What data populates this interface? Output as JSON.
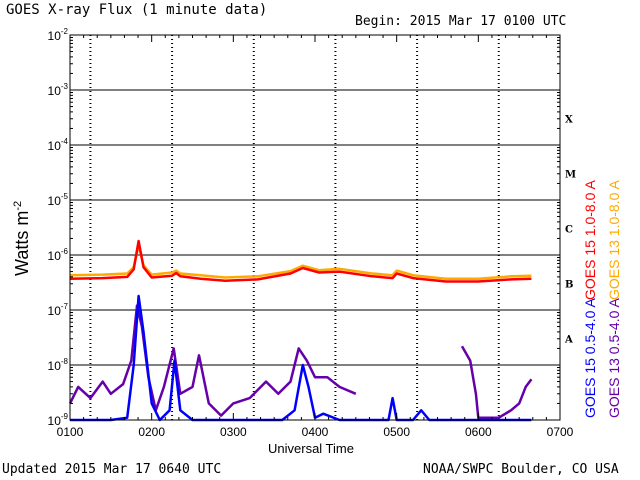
{
  "header": {
    "title": "GOES X-ray Flux (1 minute data)",
    "begin": "Begin: 2015 Mar 17 0100 UTC"
  },
  "footer": {
    "updated": "Updated 2015 Mar 17 0640 UTC",
    "credit": "NOAA/SWPC Boulder, CO USA"
  },
  "chart_data": {
    "type": "line",
    "title": "GOES X-ray Flux (1 minute data)",
    "xlabel": "Universal Time",
    "ylabel_base": "Watts m",
    "ylabel_exp": "-2",
    "yscale": "log",
    "xlim": [
      "0100",
      "0700"
    ],
    "ylim": [
      1e-09,
      0.01
    ],
    "grid": true,
    "x_ticks": [
      "0100",
      "0200",
      "0300",
      "0400",
      "0500",
      "0600",
      "0700"
    ],
    "y_ticks": [
      {
        "base": "10",
        "exp": "-2"
      },
      {
        "base": "10",
        "exp": "-3"
      },
      {
        "base": "10",
        "exp": "-4"
      },
      {
        "base": "10",
        "exp": "-5"
      },
      {
        "base": "10",
        "exp": "-6"
      },
      {
        "base": "10",
        "exp": "-7"
      },
      {
        "base": "10",
        "exp": "-8"
      },
      {
        "base": "10",
        "exp": "-9"
      }
    ],
    "flare_classes": [
      {
        "label": "X",
        "level": 0.0001
      },
      {
        "label": "M",
        "level": 1e-05
      },
      {
        "label": "C",
        "level": 1e-06
      },
      {
        "label": "B",
        "level": 1e-07
      },
      {
        "label": "A",
        "level": 1e-08
      }
    ],
    "x_unit": "hours UTC",
    "series": [
      {
        "name": "GOES 13 1.0-8.0 A",
        "color": "#ffaa00",
        "points": [
          [
            1.0,
            4.3e-07
          ],
          [
            1.4,
            4.4e-07
          ],
          [
            1.7,
            4.6e-07
          ],
          [
            1.78,
            6e-07
          ],
          [
            1.84,
            1.5e-06
          ],
          [
            1.9,
            6.5e-07
          ],
          [
            2.0,
            4.4e-07
          ],
          [
            2.25,
            4.8e-07
          ],
          [
            2.3,
            5.2e-07
          ],
          [
            2.35,
            4.6e-07
          ],
          [
            2.6,
            4.3e-07
          ],
          [
            2.9,
            3.9e-07
          ],
          [
            3.3,
            4.1e-07
          ],
          [
            3.7,
            5.1e-07
          ],
          [
            3.85,
            6.4e-07
          ],
          [
            4.05,
            5.3e-07
          ],
          [
            4.3,
            5.6e-07
          ],
          [
            4.7,
            4.6e-07
          ],
          [
            4.95,
            4.3e-07
          ],
          [
            5.0,
            5.2e-07
          ],
          [
            5.2,
            4.3e-07
          ],
          [
            5.6,
            3.7e-07
          ],
          [
            6.0,
            3.7e-07
          ],
          [
            6.4,
            4.1e-07
          ],
          [
            6.65,
            4.2e-07
          ]
        ]
      },
      {
        "name": "GOES 15 1.0-8.0 A",
        "color": "#ff0000",
        "points": [
          [
            1.0,
            3.7e-07
          ],
          [
            1.4,
            3.8e-07
          ],
          [
            1.7,
            4e-07
          ],
          [
            1.78,
            5.5e-07
          ],
          [
            1.84,
            1.8e-06
          ],
          [
            1.9,
            6e-07
          ],
          [
            2.0,
            3.9e-07
          ],
          [
            2.25,
            4.2e-07
          ],
          [
            2.3,
            4.7e-07
          ],
          [
            2.35,
            4.1e-07
          ],
          [
            2.6,
            3.7e-07
          ],
          [
            2.9,
            3.4e-07
          ],
          [
            3.3,
            3.6e-07
          ],
          [
            3.7,
            4.6e-07
          ],
          [
            3.85,
            5.8e-07
          ],
          [
            4.05,
            4.8e-07
          ],
          [
            4.3,
            5e-07
          ],
          [
            4.7,
            4.1e-07
          ],
          [
            4.95,
            3.8e-07
          ],
          [
            5.0,
            4.6e-07
          ],
          [
            5.2,
            3.8e-07
          ],
          [
            5.6,
            3.3e-07
          ],
          [
            6.0,
            3.3e-07
          ],
          [
            6.4,
            3.6e-07
          ],
          [
            6.65,
            3.7e-07
          ]
        ]
      },
      {
        "name": "GOES 13 0.5-4.0 A",
        "color": "#6600aa",
        "points": [
          [
            1.0,
            2e-09
          ],
          [
            1.1,
            4e-09
          ],
          [
            1.25,
            2.5e-09
          ],
          [
            1.4,
            5e-09
          ],
          [
            1.5,
            3e-09
          ],
          [
            1.65,
            4.5e-09
          ],
          [
            1.75,
            1.2e-08
          ],
          [
            1.82,
            1.2e-07
          ],
          [
            1.88,
            5e-08
          ],
          [
            1.96,
            6e-09
          ],
          [
            2.05,
            1.5e-09
          ],
          [
            2.15,
            4e-09
          ],
          [
            2.27,
            2e-08
          ],
          [
            2.35,
            3e-09
          ],
          [
            2.5,
            4e-09
          ],
          [
            2.58,
            1.5e-08
          ],
          [
            2.7,
            2e-09
          ],
          [
            2.85,
            1.2e-09
          ],
          [
            3.0,
            2e-09
          ],
          [
            3.2,
            2.5e-09
          ],
          [
            3.4,
            5e-09
          ],
          [
            3.55,
            3e-09
          ],
          [
            3.7,
            5e-09
          ],
          [
            3.8,
            2e-08
          ],
          [
            3.9,
            1.2e-08
          ],
          [
            4.0,
            6e-09
          ],
          [
            4.15,
            6e-09
          ],
          [
            4.3,
            4e-09
          ],
          [
            4.5,
            3e-09
          ]
        ],
        "points_b": [
          [
            5.8,
            2.2e-08
          ],
          [
            5.9,
            1.2e-08
          ],
          [
            5.97,
            3e-09
          ],
          [
            6.0,
            1.1e-09
          ],
          [
            6.15,
            1.1e-09
          ],
          [
            6.25,
            1.1e-09
          ],
          [
            6.4,
            1.5e-09
          ],
          [
            6.5,
            2e-09
          ],
          [
            6.58,
            4e-09
          ],
          [
            6.65,
            5.5e-09
          ]
        ]
      },
      {
        "name": "GOES 15 0.5-4.0 A",
        "color": "#0000ff",
        "points": [
          [
            1.0,
            1e-09
          ],
          [
            1.5,
            1e-09
          ],
          [
            1.7,
            1.1e-09
          ],
          [
            1.78,
            1e-08
          ],
          [
            1.84,
            1.8e-07
          ],
          [
            1.9,
            4e-08
          ],
          [
            2.0,
            2e-09
          ],
          [
            2.1,
            1e-09
          ],
          [
            2.22,
            1.5e-09
          ],
          [
            2.28,
            1.2e-08
          ],
          [
            2.35,
            1.5e-09
          ],
          [
            2.5,
            1e-09
          ],
          [
            3.0,
            1e-09
          ],
          [
            3.6,
            1e-09
          ],
          [
            3.75,
            1.5e-09
          ],
          [
            3.85,
            1e-08
          ],
          [
            3.92,
            4e-09
          ],
          [
            4.0,
            1.1e-09
          ],
          [
            4.1,
            1.3e-09
          ],
          [
            4.3,
            1e-09
          ],
          [
            4.9,
            1e-09
          ],
          [
            4.95,
            2.5e-09
          ],
          [
            5.0,
            1e-09
          ],
          [
            5.2,
            1e-09
          ],
          [
            5.3,
            1.5e-09
          ],
          [
            5.4,
            1e-09
          ],
          [
            6.65,
            1e-09
          ]
        ]
      }
    ],
    "legend_placement": "right-vertical"
  }
}
